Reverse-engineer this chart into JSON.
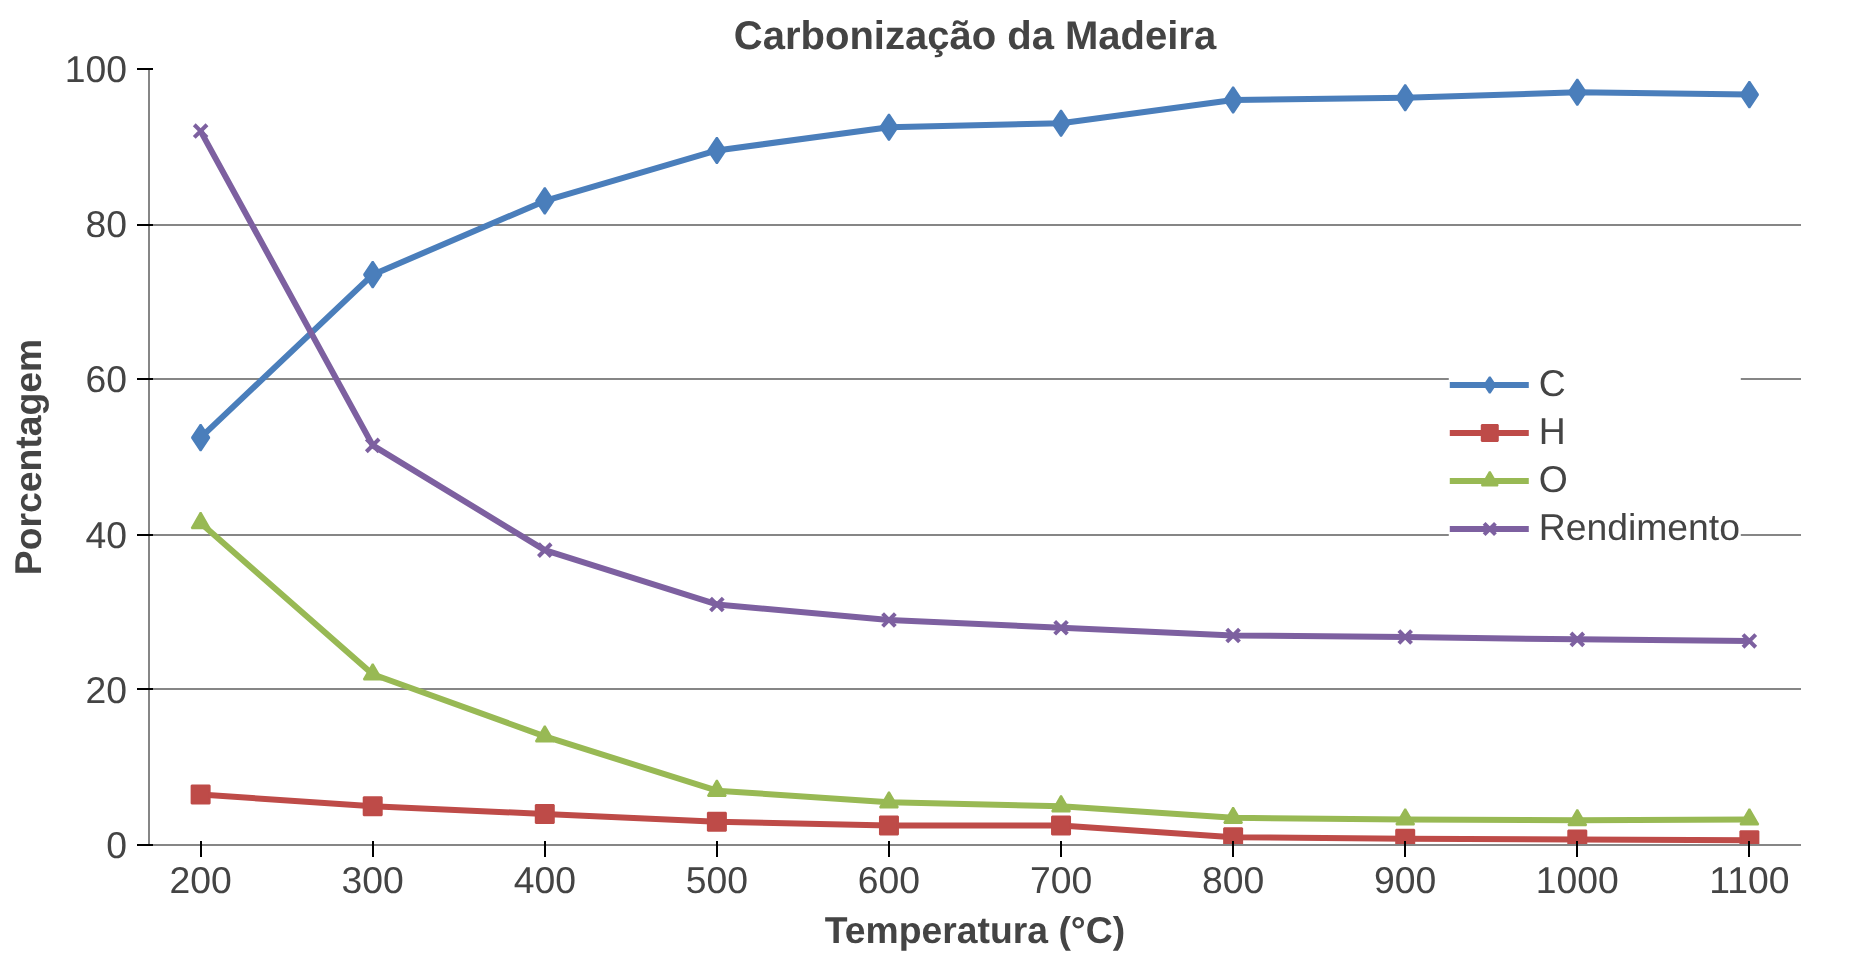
{
  "chart_data": {
    "type": "line",
    "title": "Carbonização da Madeira",
    "xlabel": "Temperatura (°C)",
    "ylabel": "Porcentagem",
    "x": [
      200,
      300,
      400,
      500,
      600,
      700,
      800,
      900,
      1000,
      1100
    ],
    "xlim": [
      170,
      1130
    ],
    "xticks": [
      200,
      300,
      400,
      500,
      600,
      700,
      800,
      900,
      1000,
      1100
    ],
    "ylim": [
      0,
      100
    ],
    "yticks": [
      0,
      20,
      40,
      60,
      80,
      100
    ],
    "grid": "y",
    "legend": "right",
    "series": [
      {
        "name": "C",
        "color": "#4a7ebb",
        "marker": "diamond",
        "values": [
          52.5,
          73.5,
          83,
          89.5,
          92.5,
          93,
          96,
          96.3,
          97,
          96.7
        ]
      },
      {
        "name": "H",
        "color": "#be4b48",
        "marker": "square",
        "values": [
          6.5,
          5,
          4,
          3,
          2.5,
          2.5,
          1,
          0.8,
          0.7,
          0.6
        ]
      },
      {
        "name": "O",
        "color": "#98b954",
        "marker": "triangle",
        "values": [
          41.5,
          22,
          14,
          7,
          5.5,
          5,
          3.5,
          3.3,
          3.2,
          3.3
        ]
      },
      {
        "name": "Rendimento",
        "color": "#7d60a0",
        "marker": "cross",
        "values": [
          92,
          51.5,
          38,
          31,
          29,
          28,
          27,
          26.8,
          26.5,
          26.3
        ]
      }
    ]
  }
}
